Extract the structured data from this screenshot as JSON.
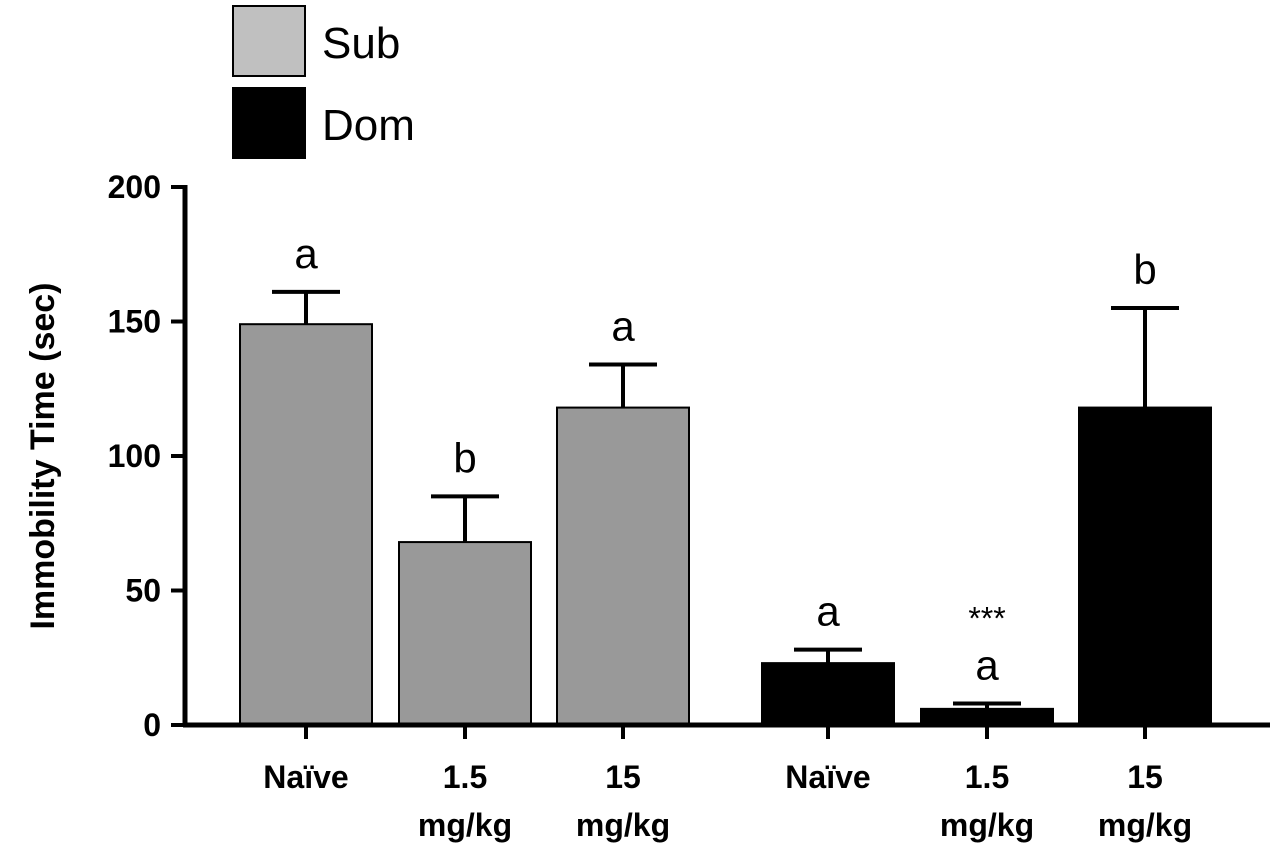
{
  "chart_data": {
    "type": "bar",
    "ylabel": "Immobility Time (sec)",
    "xlabel": "",
    "ylim": [
      0,
      200
    ],
    "yticks": [
      0,
      50,
      100,
      150,
      200
    ],
    "grid": false,
    "legend_position": "top-left",
    "series": [
      {
        "name": "Sub",
        "color": "#999999",
        "legend_color": "#c0c0c0",
        "categories": [
          "Naïve",
          "1.5 mg/kg",
          "15 mg/kg"
        ],
        "category_lines": [
          [
            "Naïve"
          ],
          [
            "1.5",
            "mg/kg"
          ],
          [
            "15",
            "mg/kg"
          ]
        ],
        "values": [
          149,
          68,
          118
        ],
        "errors": [
          12,
          17,
          16
        ],
        "annotations": [
          [
            "a"
          ],
          [
            "b"
          ],
          [
            "a"
          ]
        ]
      },
      {
        "name": "Dom",
        "color": "#000000",
        "legend_color": "#000000",
        "categories": [
          "Naïve",
          "1.5 mg/kg",
          "15 mg/kg"
        ],
        "category_lines": [
          [
            "Naïve"
          ],
          [
            "1.5",
            "mg/kg"
          ],
          [
            "15",
            "mg/kg"
          ]
        ],
        "values": [
          23,
          6,
          118
        ],
        "errors": [
          5,
          2,
          37
        ],
        "annotations": [
          [
            "a"
          ],
          [
            "***",
            "a"
          ],
          [
            "b"
          ]
        ]
      }
    ]
  }
}
